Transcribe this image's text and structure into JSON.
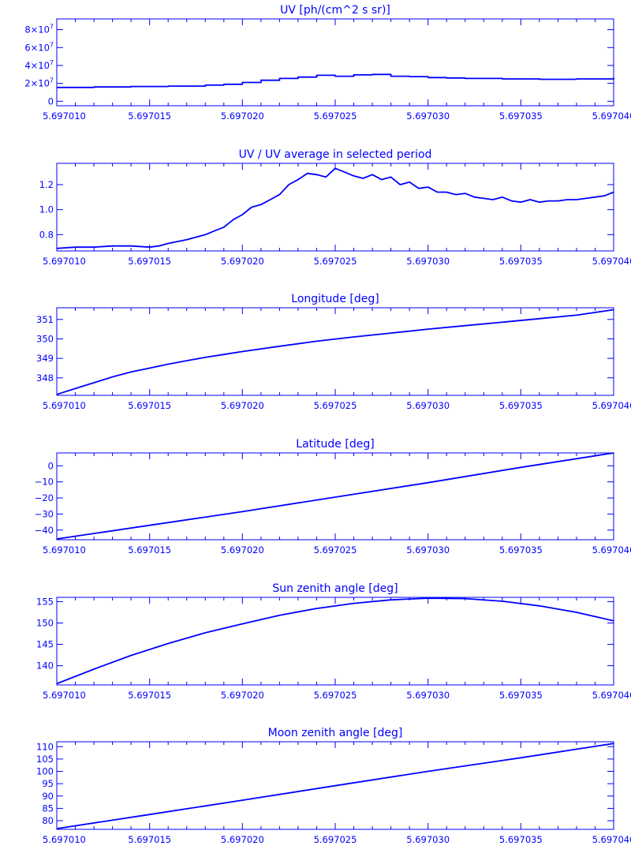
{
  "chart_data": [
    {
      "type": "line",
      "title": "UV [ph/(cm^2 s sr)]",
      "xlim": [
        5.69701,
        5.69704
      ],
      "ylim": [
        -5000000,
        92000000
      ],
      "x_ticks": [
        "5.697010",
        "5.697015",
        "5.697020",
        "5.697025",
        "5.697030",
        "5.697035",
        "5.697040"
      ],
      "y_ticks": [
        {
          "value": 0,
          "mantissa": "0",
          "exponent": ""
        },
        {
          "value": 20000000,
          "mantissa": "2×10",
          "exponent": "7"
        },
        {
          "value": 40000000,
          "mantissa": "4×10",
          "exponent": "7"
        },
        {
          "value": 60000000,
          "mantissa": "6×10",
          "exponent": "7"
        },
        {
          "value": 80000000,
          "mantissa": "8×10",
          "exponent": "7"
        }
      ],
      "step": true,
      "series": [
        {
          "x": [
            5.69701,
            5.697012,
            5.697014,
            5.697016,
            5.697018,
            5.697019,
            5.69702,
            5.697021,
            5.697022,
            5.697023,
            5.697024,
            5.697025,
            5.697026,
            5.697027,
            5.697028,
            5.697029,
            5.69703,
            5.697031,
            5.697032,
            5.697034,
            5.697036,
            5.697038,
            5.69704
          ],
          "y": [
            15500000,
            16000000,
            16500000,
            17000000,
            18000000,
            19000000,
            21000000,
            23500000,
            25500000,
            27000000,
            29000000,
            28000000,
            29500000,
            30000000,
            28000000,
            27500000,
            26500000,
            26000000,
            25500000,
            25000000,
            24500000,
            25000000,
            26500000
          ]
        }
      ]
    },
    {
      "type": "line",
      "title": "UV / UV average in selected period",
      "xlim": [
        5.69701,
        5.69704
      ],
      "ylim": [
        0.67,
        1.37
      ],
      "x_ticks": [
        "5.697010",
        "5.697015",
        "5.697020",
        "5.697025",
        "5.697030",
        "5.697035",
        "5.697040"
      ],
      "y_ticks": [
        {
          "value": 0.8,
          "label": "0.8"
        },
        {
          "value": 1.0,
          "label": "1.0"
        },
        {
          "value": 1.2,
          "label": "1.2"
        }
      ],
      "series": [
        {
          "x": [
            5.69701,
            5.697011,
            5.697012,
            5.697013,
            5.697014,
            5.697015,
            5.6970155,
            5.697016,
            5.697017,
            5.697018,
            5.6970185,
            5.697019,
            5.6970195,
            5.69702,
            5.6970205,
            5.697021,
            5.6970215,
            5.697022,
            5.6970225,
            5.697023,
            5.6970235,
            5.697024,
            5.6970245,
            5.697025,
            5.6970255,
            5.697026,
            5.6970265,
            5.697027,
            5.6970275,
            5.697028,
            5.6970285,
            5.697029,
            5.6970295,
            5.69703,
            5.6970305,
            5.697031,
            5.6970315,
            5.697032,
            5.6970325,
            5.697033,
            5.6970335,
            5.697034,
            5.6970345,
            5.697035,
            5.6970355,
            5.697036,
            5.6970365,
            5.697037,
            5.6970375,
            5.697038,
            5.6970385,
            5.697039,
            5.6970395,
            5.69704
          ],
          "y": [
            0.69,
            0.7,
            0.7,
            0.71,
            0.71,
            0.7,
            0.71,
            0.73,
            0.76,
            0.8,
            0.83,
            0.86,
            0.92,
            0.96,
            1.02,
            1.04,
            1.08,
            1.12,
            1.2,
            1.24,
            1.29,
            1.28,
            1.26,
            1.33,
            1.3,
            1.27,
            1.25,
            1.28,
            1.24,
            1.26,
            1.2,
            1.22,
            1.17,
            1.18,
            1.14,
            1.14,
            1.12,
            1.13,
            1.1,
            1.09,
            1.08,
            1.1,
            1.07,
            1.06,
            1.08,
            1.06,
            1.07,
            1.07,
            1.08,
            1.08,
            1.09,
            1.1,
            1.11,
            1.14
          ]
        }
      ]
    },
    {
      "type": "line",
      "title": "Longitude [deg]",
      "xlim": [
        5.69701,
        5.69704
      ],
      "ylim": [
        347.1,
        351.6
      ],
      "x_ticks": [
        "5.697010",
        "5.697015",
        "5.697020",
        "5.697025",
        "5.697030",
        "5.697035",
        "5.697040"
      ],
      "y_ticks": [
        {
          "value": 348,
          "label": "348"
        },
        {
          "value": 349,
          "label": "349"
        },
        {
          "value": 350,
          "label": "350"
        },
        {
          "value": 351,
          "label": "351"
        }
      ],
      "series": [
        {
          "x": [
            5.69701,
            5.697011,
            5.697012,
            5.697013,
            5.697014,
            5.697015,
            5.697016,
            5.697017,
            5.697018,
            5.697019,
            5.69702,
            5.697022,
            5.697024,
            5.697026,
            5.697028,
            5.69703,
            5.697032,
            5.697034,
            5.697036,
            5.697038,
            5.69704
          ],
          "y": [
            347.15,
            347.45,
            347.75,
            348.05,
            348.3,
            348.5,
            348.7,
            348.88,
            349.05,
            349.2,
            349.35,
            349.62,
            349.88,
            350.1,
            350.3,
            350.5,
            350.68,
            350.86,
            351.04,
            351.22,
            351.5
          ]
        }
      ]
    },
    {
      "type": "line",
      "title": "Latitude [deg]",
      "xlim": [
        5.69701,
        5.69704
      ],
      "ylim": [
        -46,
        8
      ],
      "x_ticks": [
        "5.697010",
        "5.697015",
        "5.697020",
        "5.697025",
        "5.697030",
        "5.697035",
        "5.697040"
      ],
      "y_ticks": [
        {
          "value": -40,
          "label": "−40"
        },
        {
          "value": -30,
          "label": "−30"
        },
        {
          "value": -20,
          "label": "−20"
        },
        {
          "value": -10,
          "label": "−10"
        },
        {
          "value": 0,
          "label": "0"
        }
      ],
      "series": [
        {
          "x": [
            5.69701,
            5.697015,
            5.69702,
            5.697025,
            5.69703,
            5.697035,
            5.69704
          ],
          "y": [
            -45.5,
            -37.0,
            -28.5,
            -19.5,
            -10.5,
            -1.0,
            8.0
          ]
        }
      ]
    },
    {
      "type": "line",
      "title": "Sun zenith angle [deg]",
      "xlim": [
        5.69701,
        5.69704
      ],
      "ylim": [
        135.5,
        156
      ],
      "x_ticks": [
        "5.697010",
        "5.697015",
        "5.697020",
        "5.697025",
        "5.697030",
        "5.697035",
        "5.697040"
      ],
      "y_ticks": [
        {
          "value": 140,
          "label": "140"
        },
        {
          "value": 145,
          "label": "145"
        },
        {
          "value": 150,
          "label": "150"
        },
        {
          "value": 155,
          "label": "155"
        }
      ],
      "series": [
        {
          "x": [
            5.69701,
            5.697012,
            5.697014,
            5.697016,
            5.697018,
            5.69702,
            5.697022,
            5.697024,
            5.697026,
            5.697028,
            5.69703,
            5.697032,
            5.697034,
            5.697036,
            5.697038,
            5.69704
          ],
          "y": [
            135.8,
            139.2,
            142.4,
            145.2,
            147.7,
            149.8,
            151.8,
            153.4,
            154.6,
            155.4,
            155.8,
            155.7,
            155.1,
            154.0,
            152.5,
            150.5
          ]
        }
      ]
    },
    {
      "type": "line",
      "title": "Moon zenith angle [deg]",
      "xlim": [
        5.69701,
        5.69704
      ],
      "ylim": [
        76.5,
        112
      ],
      "x_ticks": [
        "5.697010",
        "5.697015",
        "5.697020",
        "5.697025",
        "5.697030",
        "5.697035",
        "5.697040"
      ],
      "y_ticks": [
        {
          "value": 80,
          "label": "80"
        },
        {
          "value": 85,
          "label": "85"
        },
        {
          "value": 90,
          "label": "90"
        },
        {
          "value": 95,
          "label": "95"
        },
        {
          "value": 100,
          "label": "100"
        },
        {
          "value": 105,
          "label": "105"
        },
        {
          "value": 110,
          "label": "110"
        }
      ],
      "series": [
        {
          "x": [
            5.69701,
            5.697015,
            5.69702,
            5.697025,
            5.69703,
            5.697035,
            5.69704
          ],
          "y": [
            76.8,
            82.5,
            88.3,
            94.2,
            100.0,
            105.5,
            111.3
          ]
        }
      ]
    }
  ]
}
